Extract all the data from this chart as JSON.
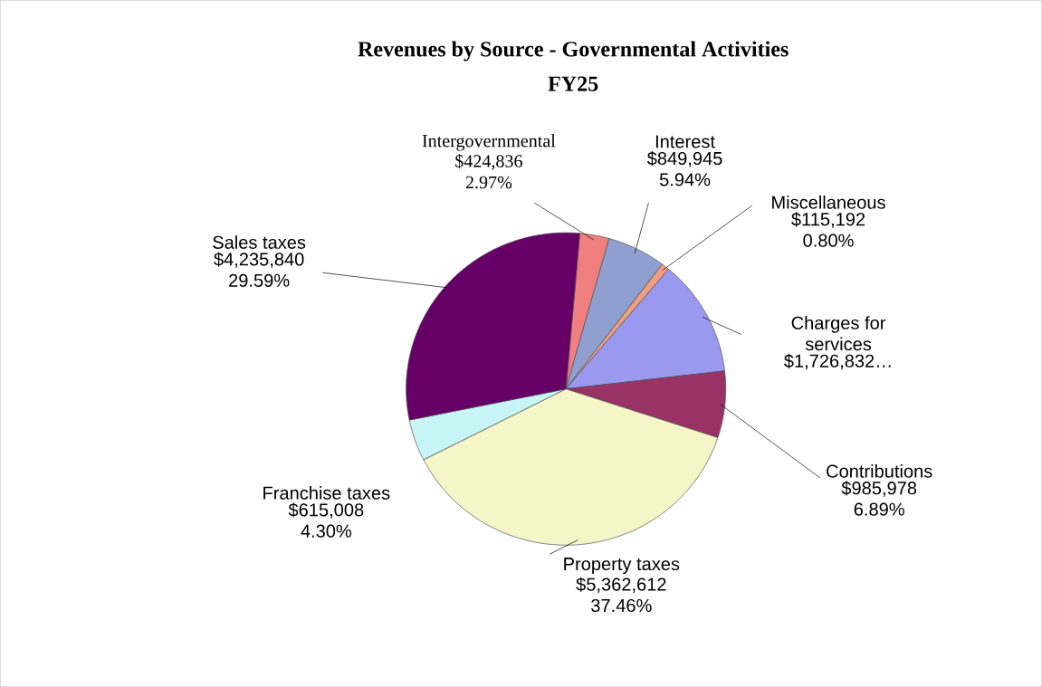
{
  "chart_data": {
    "type": "pie",
    "title": "Revenues by Source - Governmental Activities",
    "subtitle": "FY25",
    "categories": [
      "Intergovernmental",
      "Interest",
      "Miscellaneous",
      "Charges for services",
      "Contributions",
      "Property taxes",
      "Franchise taxes",
      "Sales taxes"
    ],
    "values": [
      424836,
      849945,
      115192,
      1726832,
      985978,
      5362612,
      615008,
      4235840
    ],
    "value_labels": [
      "$424,836 2.97%",
      "$849,945 5.94%",
      "$115,192 0.80%",
      "$1,726,832…",
      "$985,978 6.89%",
      "$5,362,612 37.46%",
      "$615,008 4.30%",
      "$4,235,840 29.59%"
    ],
    "colors": [
      "#f08080",
      "#8fa0d0",
      "#f0a080",
      "#9999f0",
      "#993366",
      "#f5f5c8",
      "#c8f5f5",
      "#660066"
    ]
  }
}
